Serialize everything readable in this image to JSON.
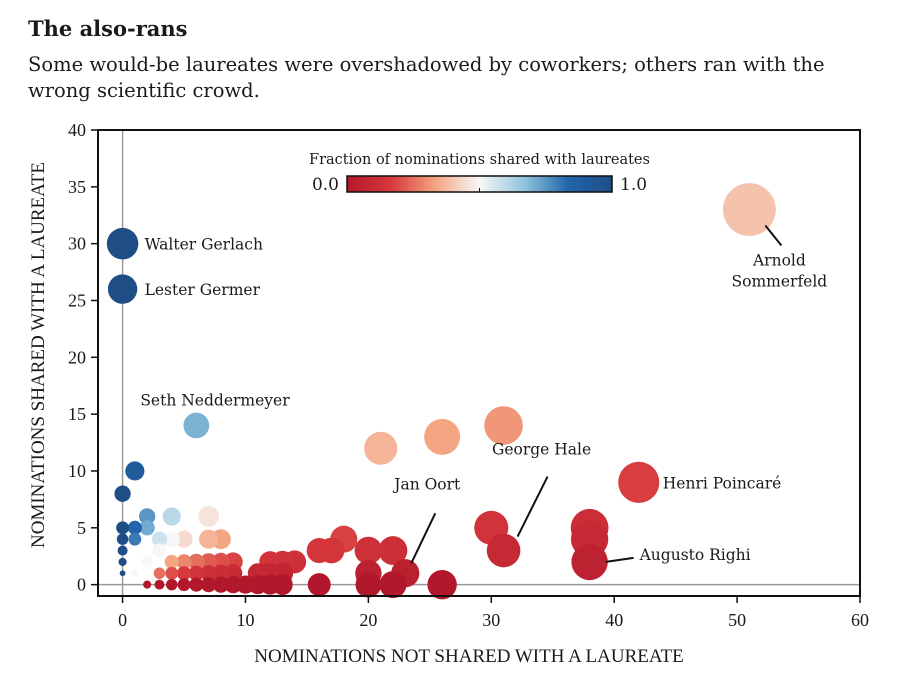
{
  "title": "The also-rans",
  "subtitle": "Some would-be laureates were overshadowed by coworkers; others ran with the wrong scientific crowd.",
  "chart_data": {
    "type": "scatter",
    "xlabel": "NOMINATIONS NOT SHARED WITH A LAUREATE",
    "ylabel": "NOMINATIONS SHARED WITH A LAUREATE",
    "xlim": [
      -2,
      60
    ],
    "ylim": [
      -1,
      40
    ],
    "xticks": [
      0,
      10,
      20,
      30,
      40,
      50,
      60
    ],
    "yticks": [
      0,
      5,
      10,
      15,
      20,
      25,
      30,
      35,
      40
    ],
    "colorbar": {
      "title": "Fraction of nominations shared with laureates",
      "min_label": "0.0",
      "max_label": "1.0",
      "colors": [
        "#b2182b",
        "#d6383c",
        "#f4a582",
        "#f7f7f7",
        "#92c5de",
        "#2166ac",
        "#1f4e86"
      ]
    },
    "points": [
      {
        "x": 0,
        "y": 30,
        "label": "Walter Gerlach"
      },
      {
        "x": 0,
        "y": 26,
        "label": "Lester Germer"
      },
      {
        "x": 6,
        "y": 14,
        "label": "Seth Neddermeyer"
      },
      {
        "x": 51,
        "y": 33,
        "label": "Arnold Sommerfeld"
      },
      {
        "x": 42,
        "y": 9,
        "label": "Henri Poincaré"
      },
      {
        "x": 38,
        "y": 2,
        "label": "Augusto Righi"
      },
      {
        "x": 31,
        "y": 3,
        "label": "George Hale"
      },
      {
        "x": 23,
        "y": 1,
        "label": "Jan Oort"
      },
      {
        "x": 38,
        "y": 5
      },
      {
        "x": 38,
        "y": 4
      },
      {
        "x": 30,
        "y": 5
      },
      {
        "x": 31,
        "y": 14
      },
      {
        "x": 26,
        "y": 13
      },
      {
        "x": 21,
        "y": 12
      },
      {
        "x": 22,
        "y": 3
      },
      {
        "x": 20,
        "y": 3
      },
      {
        "x": 20,
        "y": 1
      },
      {
        "x": 20,
        "y": 0
      },
      {
        "x": 22,
        "y": 0
      },
      {
        "x": 26,
        "y": 0
      },
      {
        "x": 18,
        "y": 4
      },
      {
        "x": 17,
        "y": 3
      },
      {
        "x": 16,
        "y": 3
      },
      {
        "x": 16,
        "y": 0
      },
      {
        "x": 14,
        "y": 2
      },
      {
        "x": 13,
        "y": 2
      },
      {
        "x": 12,
        "y": 2
      },
      {
        "x": 13,
        "y": 1
      },
      {
        "x": 12,
        "y": 1
      },
      {
        "x": 11,
        "y": 1
      },
      {
        "x": 13,
        "y": 0
      },
      {
        "x": 12,
        "y": 0
      },
      {
        "x": 11,
        "y": 0
      },
      {
        "x": 10,
        "y": 0
      },
      {
        "x": 9,
        "y": 0
      },
      {
        "x": 8,
        "y": 0
      },
      {
        "x": 7,
        "y": 0
      },
      {
        "x": 6,
        "y": 0
      },
      {
        "x": 5,
        "y": 0
      },
      {
        "x": 4,
        "y": 0
      },
      {
        "x": 3,
        "y": 0
      },
      {
        "x": 2,
        "y": 0
      },
      {
        "x": 9,
        "y": 2
      },
      {
        "x": 8,
        "y": 2
      },
      {
        "x": 7,
        "y": 2
      },
      {
        "x": 6,
        "y": 2
      },
      {
        "x": 9,
        "y": 1
      },
      {
        "x": 8,
        "y": 1
      },
      {
        "x": 7,
        "y": 1
      },
      {
        "x": 6,
        "y": 1
      },
      {
        "x": 5,
        "y": 1
      },
      {
        "x": 4,
        "y": 1
      },
      {
        "x": 3,
        "y": 1
      },
      {
        "x": 8,
        "y": 4
      },
      {
        "x": 7,
        "y": 4
      },
      {
        "x": 7,
        "y": 6
      },
      {
        "x": 5,
        "y": 4
      },
      {
        "x": 4,
        "y": 4
      },
      {
        "x": 3,
        "y": 4
      },
      {
        "x": 4,
        "y": 6
      },
      {
        "x": 2,
        "y": 6
      },
      {
        "x": 2,
        "y": 5
      },
      {
        "x": 1,
        "y": 5
      },
      {
        "x": 1,
        "y": 4
      },
      {
        "x": 1,
        "y": 10
      },
      {
        "x": 5,
        "y": 2
      },
      {
        "x": 4,
        "y": 2
      },
      {
        "x": 3,
        "y": 3
      },
      {
        "x": 2,
        "y": 2
      },
      {
        "x": 1,
        "y": 1
      },
      {
        "x": 0,
        "y": 8
      },
      {
        "x": 0,
        "y": 5
      },
      {
        "x": 0,
        "y": 4
      },
      {
        "x": 0,
        "y": 3
      },
      {
        "x": 0,
        "y": 2
      },
      {
        "x": 0,
        "y": 1
      }
    ]
  }
}
